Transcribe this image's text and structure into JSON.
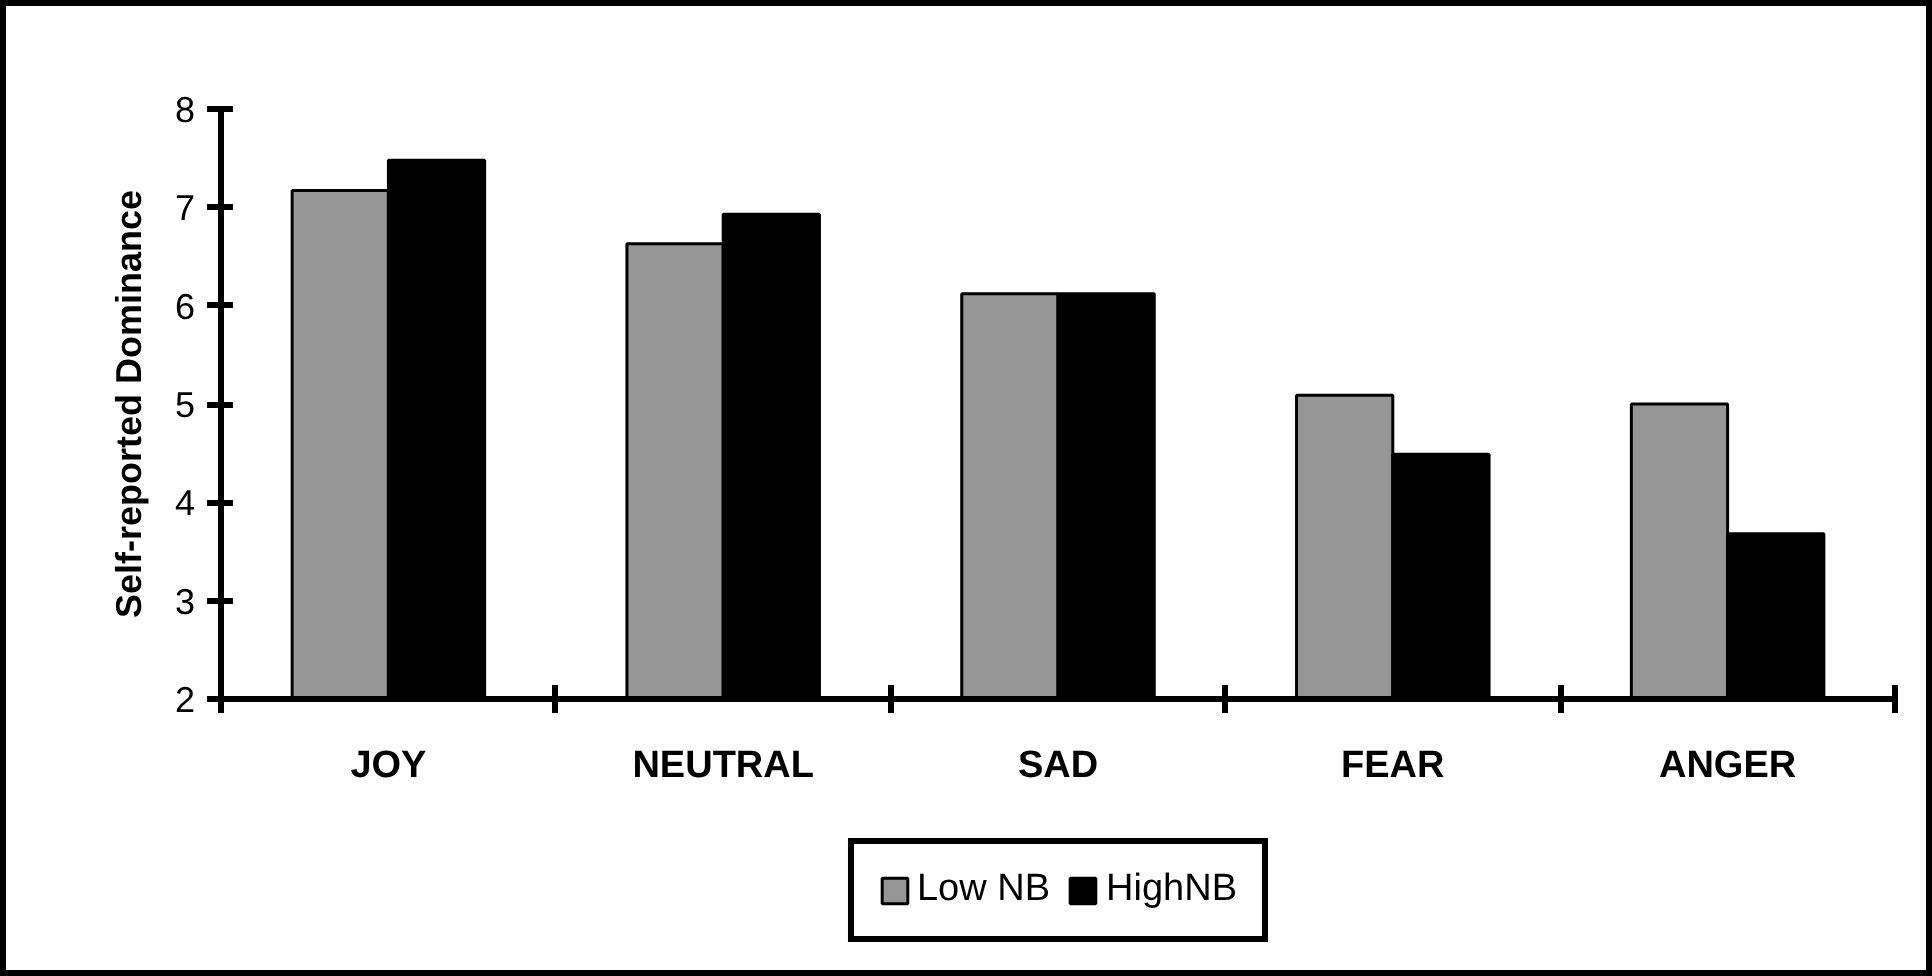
{
  "chart_data": {
    "type": "bar",
    "ylabel": "Self-reported Dominance",
    "categories": [
      "JOY",
      "NEUTRAL",
      "SAD",
      "FEAR",
      "ANGER"
    ],
    "series": [
      {
        "name": "Low NB",
        "color": "#969696",
        "values": [
          7.17,
          6.63,
          6.12,
          5.09,
          5.0
        ]
      },
      {
        "name": "HighNB",
        "color": "#000000",
        "values": [
          7.48,
          6.93,
          6.12,
          4.49,
          3.68
        ]
      }
    ],
    "ylim": [
      2,
      8
    ],
    "yticks": [
      2,
      3,
      4,
      5,
      6,
      7,
      8
    ],
    "legend": "bottom"
  }
}
